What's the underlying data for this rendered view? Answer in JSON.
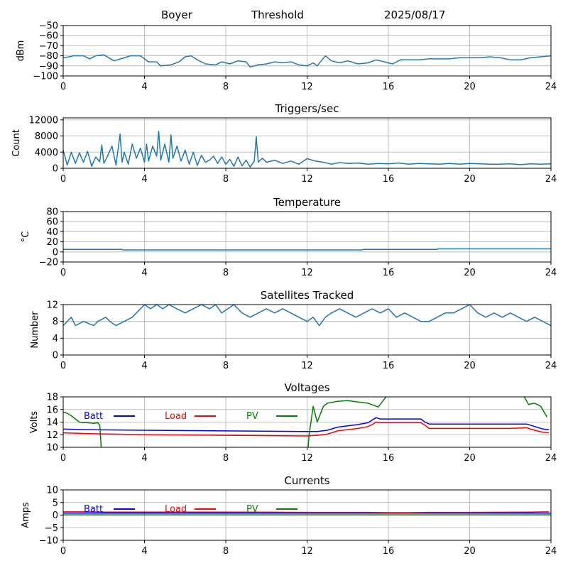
{
  "header": {
    "station": "Boyer",
    "mode": "Threshold",
    "date": "2025/08/17"
  },
  "colors": {
    "default_line": "#1f77b4",
    "batt": "#0000ff",
    "load": "#ff0000",
    "pv": "#008000",
    "grid": "#b0b0b0"
  },
  "chart_data": [
    {
      "id": "rssi",
      "type": "line",
      "title": "",
      "xlabel": "",
      "ylabel": "dBm",
      "xlim": [
        0,
        24
      ],
      "ylim": [
        -100,
        -50
      ],
      "xticks": [
        0,
        4,
        8,
        12,
        16,
        20,
        24
      ],
      "yticks": [
        -100,
        -90,
        -80,
        -70,
        -60,
        -50
      ],
      "grid": true,
      "legend": "none",
      "series": [
        {
          "color": "#1f77b4",
          "x": [
            0,
            0.3,
            0.5,
            1.0,
            1.3,
            1.6,
            2.0,
            2.5,
            3.0,
            3.3,
            3.8,
            4.2,
            4.6,
            4.8,
            5.3,
            5.7,
            6.0,
            6.3,
            6.6,
            7.0,
            7.5,
            7.8,
            8.2,
            8.6,
            9.0,
            9.2,
            9.6,
            10.0,
            10.4,
            10.8,
            11.2,
            11.6,
            12.0,
            12.3,
            12.5,
            12.7,
            12.9,
            13.2,
            13.6,
            14.0,
            14.5,
            15.0,
            15.4,
            15.8,
            16.2,
            16.6,
            17.0,
            17.5,
            18.0,
            18.5,
            19.0,
            19.5,
            20.0,
            20.5,
            21.0,
            21.5,
            22.0,
            22.5,
            23.0,
            23.5,
            24.0
          ],
          "y": [
            -82,
            -81,
            -80,
            -80,
            -83,
            -80,
            -79,
            -85,
            -82,
            -80,
            -80,
            -86,
            -86,
            -90,
            -89,
            -86,
            -81,
            -80,
            -84,
            -88,
            -89,
            -86,
            -88,
            -85,
            -86,
            -91,
            -89,
            -88,
            -86,
            -87,
            -86,
            -89,
            -90,
            -87,
            -90,
            -85,
            -80,
            -85,
            -87,
            -85,
            -88,
            -87,
            -84,
            -86,
            -88,
            -84,
            -84,
            -84,
            -83,
            -83,
            -83,
            -82,
            -82,
            -82,
            -81,
            -82,
            -84,
            -84,
            -82,
            -81,
            -80
          ]
        }
      ]
    },
    {
      "id": "triggers",
      "type": "line",
      "title": "Triggers/sec",
      "xlabel": "",
      "ylabel": "Count",
      "xlim": [
        0,
        24
      ],
      "ylim": [
        0,
        12500
      ],
      "xticks": [
        0,
        4,
        8,
        12,
        16,
        20,
        24
      ],
      "yticks": [
        0,
        4000,
        8000,
        12000
      ],
      "grid": true,
      "legend": "none",
      "series": [
        {
          "color": "#1f77b4",
          "x": [
            0,
            0.2,
            0.4,
            0.6,
            0.8,
            1.0,
            1.2,
            1.4,
            1.6,
            1.8,
            1.9,
            2.0,
            2.2,
            2.4,
            2.6,
            2.8,
            2.9,
            3.0,
            3.2,
            3.4,
            3.6,
            3.8,
            4.0,
            4.1,
            4.2,
            4.4,
            4.6,
            4.7,
            4.8,
            5.0,
            5.2,
            5.3,
            5.4,
            5.6,
            5.8,
            6.0,
            6.2,
            6.4,
            6.6,
            6.8,
            7.0,
            7.2,
            7.4,
            7.6,
            7.8,
            8.0,
            8.2,
            8.4,
            8.6,
            8.8,
            9.0,
            9.2,
            9.4,
            9.5,
            9.6,
            9.8,
            10.0,
            10.4,
            10.8,
            11.2,
            11.6,
            12.0,
            12.4,
            12.8,
            13.2,
            13.6,
            14.0,
            14.5,
            15.0,
            15.5,
            16.0,
            16.5,
            17.0,
            17.5,
            18.0,
            18.5,
            19.0,
            19.5,
            20.0,
            20.5,
            21.0,
            21.5,
            22.0,
            22.5,
            23.0,
            23.5,
            24.0
          ],
          "y": [
            4500,
            800,
            4000,
            1200,
            3800,
            1500,
            4200,
            500,
            2800,
            1600,
            5800,
            1200,
            3200,
            5500,
            800,
            8500,
            1500,
            4000,
            1000,
            6000,
            2500,
            5000,
            1500,
            6000,
            1800,
            5500,
            3000,
            9200,
            2000,
            6000,
            1500,
            8300,
            2500,
            5500,
            1800,
            4500,
            1000,
            4000,
            700,
            3200,
            1500,
            2000,
            3000,
            1200,
            2800,
            1000,
            2200,
            500,
            2800,
            600,
            2000,
            300,
            1800,
            7800,
            1500,
            2500,
            1500,
            2000,
            1200,
            1800,
            1000,
            2400,
            1800,
            1500,
            1000,
            1400,
            1200,
            1300,
            1000,
            1200,
            1100,
            1300,
            1000,
            1200,
            1100,
            1000,
            1200,
            1000,
            1200,
            1100,
            1000,
            1000,
            1100,
            900,
            1100,
            1000,
            1100
          ]
        }
      ]
    },
    {
      "id": "temperature",
      "type": "line",
      "title": "Temperature",
      "xlabel": "",
      "ylabel": "°C",
      "xlim": [
        0,
        24
      ],
      "ylim": [
        -20,
        80
      ],
      "xticks": [
        0,
        4,
        8,
        12,
        16,
        20,
        24
      ],
      "yticks": [
        -20,
        0,
        20,
        40,
        60,
        80
      ],
      "grid": true,
      "legend": "none",
      "series": [
        {
          "color": "#1f77b4",
          "x": [
            0,
            2.9,
            2.95,
            14.7,
            14.75,
            18.4,
            18.45,
            24.0
          ],
          "y": [
            5,
            5,
            4,
            4,
            5,
            5,
            6,
            6
          ]
        }
      ]
    },
    {
      "id": "satellites",
      "type": "line",
      "title": "Satellites Tracked",
      "xlabel": "",
      "ylabel": "Number",
      "xlim": [
        0,
        24
      ],
      "ylim": [
        0,
        12
      ],
      "xticks": [
        0,
        4,
        8,
        12,
        16,
        20,
        24
      ],
      "yticks": [
        0,
        4,
        8,
        12
      ],
      "grid": true,
      "legend": "none",
      "series": [
        {
          "color": "#1f77b4",
          "x": [
            0,
            0.2,
            0.4,
            0.6,
            1.0,
            1.5,
            1.7,
            2.1,
            2.3,
            2.6,
            3.0,
            3.4,
            3.6,
            3.8,
            4.0,
            4.3,
            4.6,
            4.9,
            5.2,
            5.6,
            6.0,
            6.4,
            6.8,
            7.2,
            7.5,
            7.8,
            8.1,
            8.4,
            8.8,
            9.2,
            9.6,
            10.0,
            10.4,
            10.8,
            11.2,
            11.6,
            12.0,
            12.3,
            12.6,
            12.9,
            13.2,
            13.6,
            14.0,
            14.4,
            14.8,
            15.2,
            15.6,
            16.0,
            16.4,
            16.8,
            17.2,
            17.6,
            18.0,
            18.4,
            18.8,
            19.2,
            19.6,
            20.0,
            20.4,
            20.8,
            21.2,
            21.6,
            22.0,
            22.4,
            22.8,
            23.2,
            23.6,
            24.0
          ],
          "y": [
            7,
            8,
            9,
            7,
            8,
            7,
            8,
            9,
            8,
            7,
            8,
            9,
            10,
            11,
            12,
            11,
            12,
            11,
            12,
            11,
            10,
            11,
            12,
            11,
            12,
            10,
            11,
            12,
            10,
            9,
            10,
            11,
            10,
            11,
            10,
            9,
            8,
            9,
            7,
            9,
            10,
            11,
            10,
            9,
            10,
            11,
            10,
            11,
            9,
            10,
            9,
            8,
            8,
            9,
            10,
            10,
            11,
            12,
            10,
            9,
            10,
            9,
            10,
            9,
            8,
            9,
            8,
            7
          ]
        }
      ]
    },
    {
      "id": "voltages",
      "type": "line",
      "title": "Voltages",
      "xlabel": "",
      "ylabel": "Volts",
      "xlim": [
        0,
        24
      ],
      "ylim": [
        10,
        18
      ],
      "xticks": [
        0,
        4,
        8,
        12,
        16,
        20,
        24
      ],
      "yticks": [
        10,
        12,
        14,
        16,
        18
      ],
      "grid": true,
      "legend": "top-left",
      "series": [
        {
          "name": "Batt",
          "color": "#0000ff",
          "x": [
            0,
            1,
            4,
            8,
            12,
            12.5,
            13,
            13.5,
            14,
            14.5,
            15,
            15.2,
            15.4,
            15.6,
            16,
            17,
            17.6,
            17.8,
            18,
            20,
            22,
            22.8,
            23.2,
            23.6,
            23.9
          ],
          "y": [
            12.9,
            12.8,
            12.7,
            12.6,
            12.5,
            12.5,
            12.7,
            13.2,
            13.4,
            13.6,
            13.9,
            14.3,
            14.7,
            14.5,
            14.5,
            14.5,
            14.5,
            14.0,
            13.7,
            13.7,
            13.7,
            13.7,
            13.3,
            12.9,
            12.8
          ]
        },
        {
          "name": "Load",
          "color": "#ff0000",
          "x": [
            0,
            1,
            4,
            8,
            12,
            12.5,
            13,
            13.5,
            14,
            14.5,
            15,
            15.2,
            15.4,
            15.6,
            16,
            17,
            17.6,
            17.8,
            18,
            20,
            22,
            22.8,
            23.2,
            23.6,
            23.9
          ],
          "y": [
            12.3,
            12.2,
            12.0,
            11.9,
            11.8,
            11.9,
            12.1,
            12.6,
            12.8,
            13.0,
            13.3,
            13.6,
            14.0,
            13.9,
            13.9,
            13.9,
            13.9,
            13.5,
            13.0,
            13.0,
            13.0,
            13.1,
            12.7,
            12.4,
            12.3
          ]
        },
        {
          "name": "PV",
          "color": "#008000",
          "x": [
            0,
            0.2,
            0.4,
            0.6,
            0.8,
            1.0,
            1.2,
            1.5,
            1.7,
            1.8,
            1.85,
            1.9,
            12.0,
            12.05,
            12.1,
            12.3,
            12.5,
            12.8,
            13.0,
            13.5,
            14.0,
            14.5,
            15.0,
            15.5,
            16.0,
            16.3,
            16.6,
            22.3,
            22.6,
            22.9,
            23.2,
            23.5,
            23.8
          ],
          "y": [
            15.6,
            15.4,
            15.0,
            14.5,
            14.0,
            13.9,
            13.9,
            13.8,
            13.9,
            13.5,
            11.0,
            8.0,
            8.0,
            10.0,
            12.0,
            16.5,
            14.0,
            16.5,
            17.0,
            17.3,
            17.4,
            17.2,
            17.0,
            16.4,
            18.5,
            19.0,
            20.0,
            20.0,
            18.5,
            16.8,
            17.0,
            16.5,
            14.8
          ]
        }
      ]
    },
    {
      "id": "currents",
      "type": "line",
      "title": "Currents",
      "xlabel": "",
      "ylabel": "Amps",
      "xlim": [
        0,
        24
      ],
      "ylim": [
        -10,
        10
      ],
      "xticks": [
        0,
        4,
        8,
        12,
        16,
        20,
        24
      ],
      "yticks": [
        -10,
        -5,
        0,
        5,
        10
      ],
      "grid": true,
      "legend": "top-left",
      "series": [
        {
          "name": "Batt",
          "color": "#0000ff",
          "x": [
            0,
            24
          ],
          "y": [
            0.8,
            0.8
          ]
        },
        {
          "name": "Load",
          "color": "#ff0000",
          "x": [
            0,
            1,
            2,
            4,
            8,
            12,
            15,
            16,
            17,
            18,
            20,
            23,
            23.9
          ],
          "y": [
            1.3,
            1.3,
            1.2,
            1.2,
            1.2,
            1.1,
            1.1,
            1.0,
            1.0,
            1.1,
            1.1,
            1.2,
            1.3
          ]
        },
        {
          "name": "PV",
          "color": "#008000",
          "x": [
            0,
            24
          ],
          "y": [
            0.1,
            0.1
          ]
        }
      ]
    }
  ]
}
